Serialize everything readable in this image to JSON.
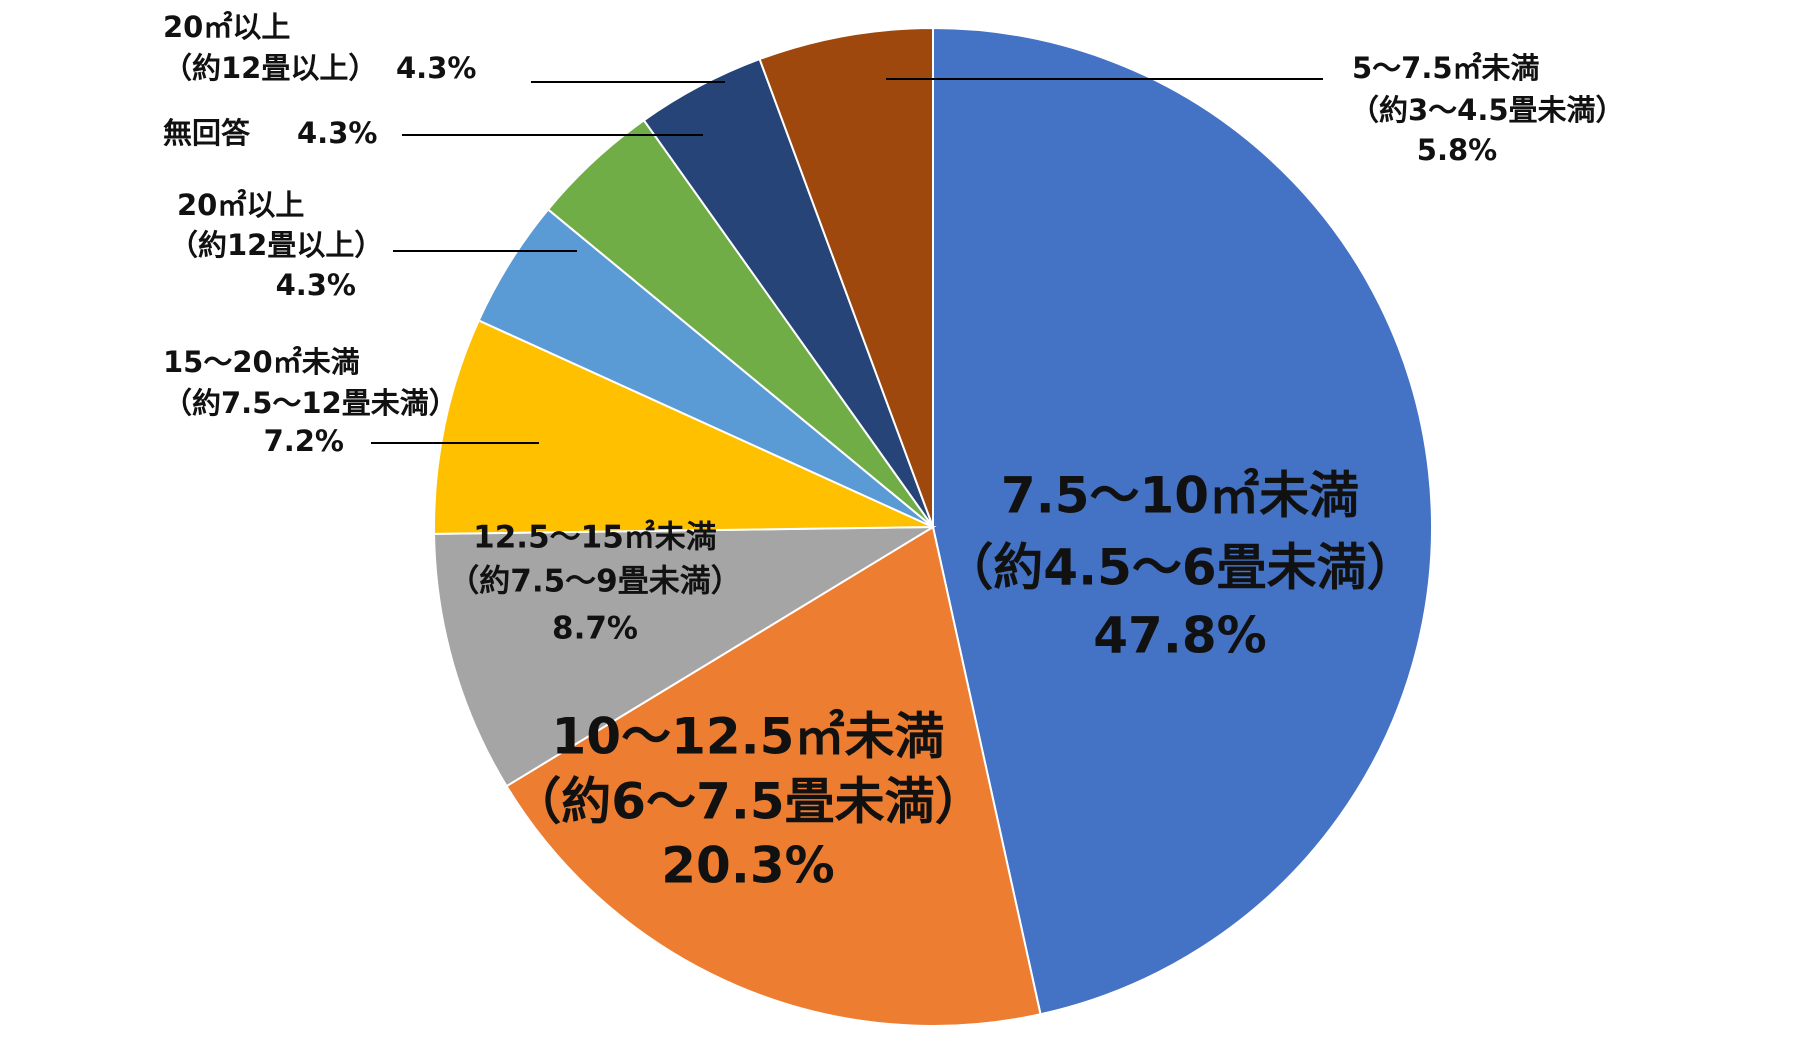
{
  "chart_data": {
    "type": "pie",
    "categories": [
      [
        "7.5～10㎡未満",
        "（約4.5～6畳未満）"
      ],
      [
        "10～12.5㎡未満",
        "（約6～7.5畳未満）"
      ],
      [
        "12.5～15㎡未満",
        "（約7.5～9畳未満）"
      ],
      [
        "15～20㎡未満",
        "（約7.5～12畳未満）"
      ],
      [
        "20㎡以上",
        "（約12畳以上）"
      ],
      [
        "無回答"
      ],
      [
        "20㎡以上",
        "（約12畳以上）"
      ],
      [
        "5～7.5㎡未満",
        "（約3～4.5畳未満）"
      ]
    ],
    "values": [
      47.8,
      20.3,
      8.7,
      7.2,
      4.3,
      4.3,
      4.3,
      5.8
    ],
    "value_labels": [
      "47.8%",
      "20.3%",
      "8.7%",
      "7.2%",
      "4.3%",
      "4.3%",
      "4.3%",
      "5.8%"
    ],
    "colors": [
      "#4472C4",
      "#ED7D31",
      "#A5A5A5",
      "#FFC000",
      "#5B9BD5",
      "#70AD47",
      "#264478",
      "#9E480E"
    ]
  }
}
